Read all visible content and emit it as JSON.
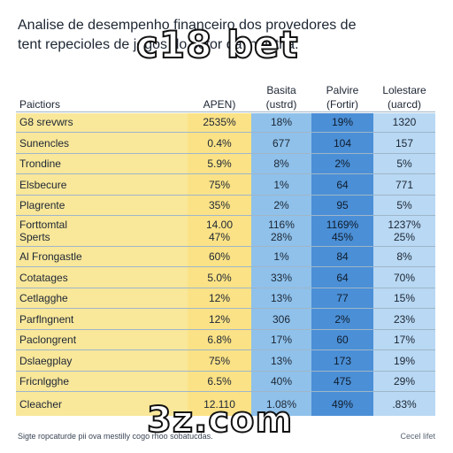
{
  "title_lines": [
    "Analise de desempenho financeiro dos provedores de",
    "tent repecioles de jogos do setor da indistria."
  ],
  "watermarks": {
    "top": "c18 bet",
    "bottom": "3z.com"
  },
  "footer": {
    "left": "Sigte ropcaturde pii ova mestilly cogo rhoo sobatucdas.",
    "right": "Cecel lifet"
  },
  "colors": {
    "label_col": "#f9e79a",
    "ap_col": "#fbe286",
    "basita_col": "#8fc1ea",
    "palvire_col": "#4b8fd6",
    "lolestare_col": "#b8d8f3"
  },
  "chart_data": {
    "type": "table",
    "columns": [
      {
        "name": "Paictiors",
        "sub": ""
      },
      {
        "name": "APEN)",
        "sub": ""
      },
      {
        "name": "Basita",
        "sub": "(ustrd)"
      },
      {
        "name": "Palvire",
        "sub": "(Fortir)"
      },
      {
        "name": "Lolestare",
        "sub": "(uarcd)"
      }
    ],
    "rows": [
      {
        "label": [
          "G8 srevwrs"
        ],
        "ap": [
          "2535%"
        ],
        "b": [
          "18%"
        ],
        "p": [
          "19%"
        ],
        "l": [
          "1320"
        ]
      },
      {
        "label": [
          "Sunencles"
        ],
        "ap": [
          "0.4%"
        ],
        "b": [
          "677"
        ],
        "p": [
          "104"
        ],
        "l": [
          "157"
        ]
      },
      {
        "label": [
          "Trondine"
        ],
        "ap": [
          "5.9%"
        ],
        "b": [
          "8%"
        ],
        "p": [
          "2%"
        ],
        "l": [
          "5%"
        ]
      },
      {
        "label": [
          "Elsbecure"
        ],
        "ap": [
          "75%"
        ],
        "b": [
          "1%"
        ],
        "p": [
          "64"
        ],
        "l": [
          "771"
        ]
      },
      {
        "label": [
          "Plagrente"
        ],
        "ap": [
          "35%"
        ],
        "b": [
          "2%"
        ],
        "p": [
          "95"
        ],
        "l": [
          "5%"
        ]
      },
      {
        "label": [
          "Forttomtal",
          "Sperts"
        ],
        "ap": [
          "14.00",
          "47%"
        ],
        "b": [
          "116%",
          "28%"
        ],
        "p": [
          "1169%",
          "45%"
        ],
        "l": [
          "1237%",
          "25%"
        ]
      },
      {
        "label": [
          "Al Frongastle"
        ],
        "ap": [
          "60%"
        ],
        "b": [
          "1%"
        ],
        "p": [
          "84"
        ],
        "l": [
          "8%"
        ]
      },
      {
        "label": [
          "Cotatages"
        ],
        "ap": [
          "5.0%"
        ],
        "b": [
          "33%"
        ],
        "p": [
          "64"
        ],
        "l": [
          "70%"
        ]
      },
      {
        "label": [
          "Cetlagghe"
        ],
        "ap": [
          "12%"
        ],
        "b": [
          "13%"
        ],
        "p": [
          "77"
        ],
        "l": [
          "15%"
        ]
      },
      {
        "label": [
          "Parflngnent"
        ],
        "ap": [
          "12%"
        ],
        "b": [
          "306"
        ],
        "p": [
          "2%"
        ],
        "l": [
          "23%"
        ]
      },
      {
        "label": [
          "Paclongrent"
        ],
        "ap": [
          "6.8%"
        ],
        "b": [
          "17%"
        ],
        "p": [
          "60"
        ],
        "l": [
          "17%"
        ]
      },
      {
        "label": [
          "Dslaegplay"
        ],
        "ap": [
          "75%"
        ],
        "b": [
          "13%"
        ],
        "p": [
          "173"
        ],
        "l": [
          "19%"
        ]
      },
      {
        "label": [
          "Fricnlgghe"
        ],
        "ap": [
          "6.5%"
        ],
        "b": [
          "40%"
        ],
        "p": [
          "475"
        ],
        "l": [
          "29%"
        ]
      },
      {
        "label": [
          "Cleacher"
        ],
        "ap": [
          "12.110"
        ],
        "b": [
          "1.08%"
        ],
        "p": [
          "49%"
        ],
        "l": [
          ".83%"
        ]
      }
    ]
  }
}
